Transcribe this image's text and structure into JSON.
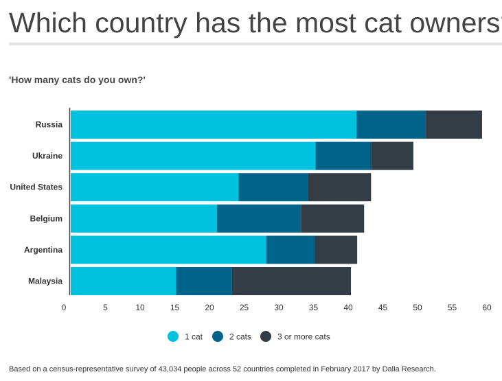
{
  "page_title": "Which country has the most cat owners?",
  "subtitle": "'How many cats do you own?'",
  "footnote": "Based on a census-representative survey of 43,034 people across 52 countries completed in February 2017 by Dalia Research.",
  "colors": {
    "1 cat": "#00c1de",
    "2 cats": "#006389",
    "3 or more cats": "#343d46"
  },
  "chart_data": {
    "type": "bar",
    "orientation": "horizontal",
    "stacked": true,
    "title": "'How many cats do you own?'",
    "categories": [
      "Russia",
      "Ukraine",
      "United States",
      "Belgium",
      "Argentina",
      "Malaysia"
    ],
    "series": [
      {
        "name": "1 cat",
        "values": [
          41.2,
          35.3,
          24.2,
          21.1,
          28.2,
          15.2
        ]
      },
      {
        "name": "2 cats",
        "values": [
          10.0,
          8.0,
          10.0,
          12.1,
          7.0,
          8.0
        ]
      },
      {
        "name": "3 or more cats",
        "values": [
          8.1,
          6.1,
          9.1,
          9.1,
          6.1,
          17.2
        ]
      }
    ],
    "xlim": [
      0,
      60
    ],
    "xticks": [
      0,
      5,
      10,
      15,
      20,
      25,
      30,
      35,
      40,
      45,
      50,
      55,
      60
    ],
    "grid": false,
    "legend_position": "bottom"
  }
}
